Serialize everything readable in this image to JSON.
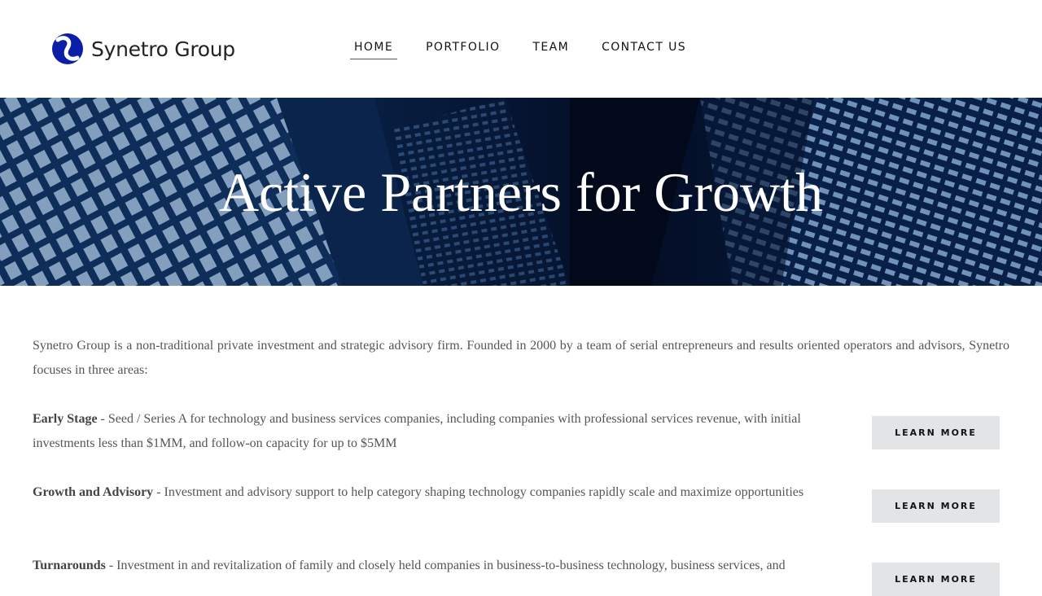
{
  "brand": {
    "name": "Synetro Group",
    "logo_icon": "synetro-s-icon",
    "logo_color": "#0b1ea8"
  },
  "nav": {
    "items": [
      {
        "label": "HOME",
        "active": true
      },
      {
        "label": "PORTFOLIO",
        "active": false
      },
      {
        "label": "TEAM",
        "active": false
      },
      {
        "label": "CONTACT US",
        "active": false
      }
    ]
  },
  "hero": {
    "title": "Active Partners for Growth"
  },
  "intro": "Synetro Group is a non-traditional private investment and strategic advisory firm. Founded in 2000 by a team of serial entrepreneurs and results oriented operators and advisors, Synetro focuses in three areas:",
  "areas": [
    {
      "title": "Early Stage",
      "description": " - Seed / Series A for technology and business services companies, including companies with professional services revenue, with initial investments less than $1MM, and follow-on capacity for up to $5MM",
      "button": "LEARN MORE"
    },
    {
      "title": "Growth and Advisory",
      "description": " - Investment and advisory support to help category shaping technology companies rapidly scale and maximize opportunities",
      "button": "LEARN MORE"
    },
    {
      "title": "Turnarounds",
      "description": " - Investment in and revitalization of family and closely held companies in business-to-business technology, business services, and",
      "button": "LEARN MORE"
    }
  ]
}
